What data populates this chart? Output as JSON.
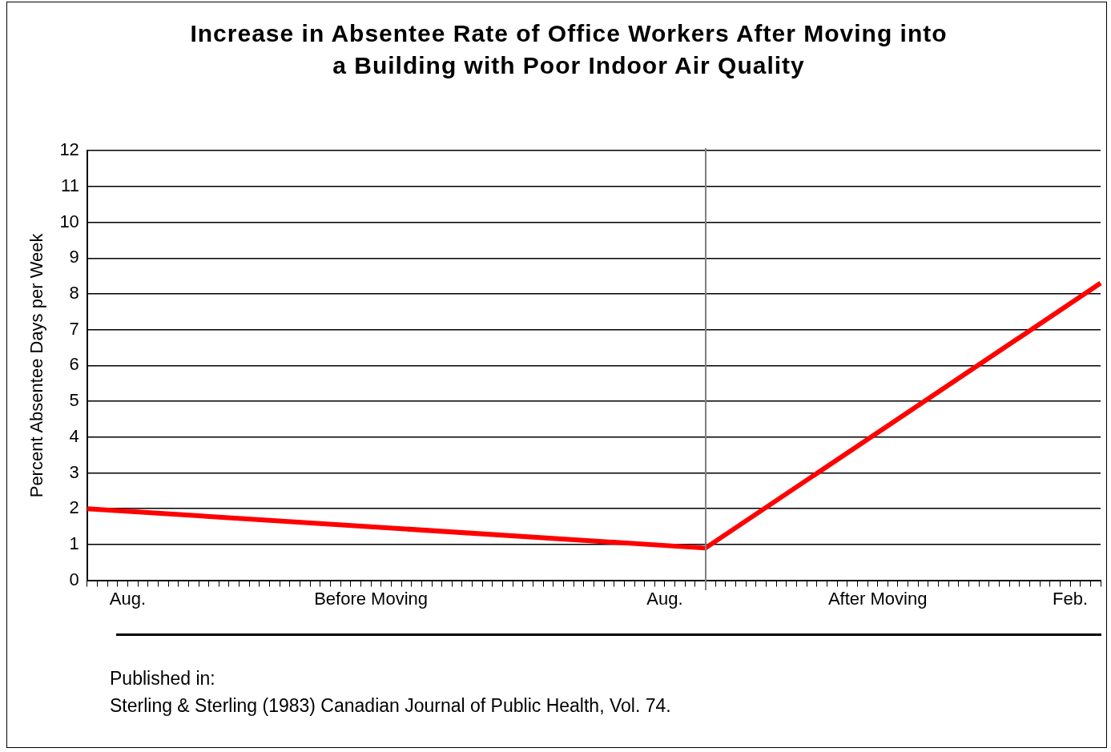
{
  "chart_data": {
    "type": "line",
    "title": "Increase in Absentee Rate of Office Workers After Moving into a Building with Poor Indoor Air Quality",
    "ylabel": "Percent Absentee Days per Week",
    "categories": [
      null,
      null,
      null,
      null,
      "Aug.",
      null,
      null,
      null,
      null,
      null,
      null,
      null,
      null,
      null,
      null,
      null,
      null,
      null,
      null,
      null,
      null,
      null,
      null,
      null,
      null,
      null,
      null,
      null,
      "Before Moving",
      null,
      null,
      null,
      null,
      null,
      null,
      null,
      null,
      null,
      null,
      null,
      null,
      null,
      null,
      null,
      null,
      null,
      null,
      null,
      null,
      null,
      null,
      null,
      null,
      null,
      null,
      null,
      null,
      "Aug.",
      null,
      null,
      null,
      null,
      null,
      null,
      null,
      null,
      null,
      null,
      null,
      null,
      null,
      null,
      null,
      null,
      null,
      null,
      null,
      null,
      "After Moving",
      null,
      null,
      null,
      null,
      null,
      null,
      null,
      null,
      null,
      null,
      null,
      null,
      null,
      null,
      null,
      null,
      null,
      null,
      "Feb.",
      null,
      null,
      null
    ],
    "series": [
      {
        "color": "#ff0000",
        "values": [
          2.0,
          null,
          null,
          null,
          null,
          null,
          null,
          null,
          null,
          null,
          null,
          null,
          null,
          null,
          null,
          null,
          null,
          null,
          null,
          null,
          null,
          null,
          null,
          null,
          null,
          null,
          null,
          null,
          null,
          null,
          null,
          null,
          null,
          null,
          null,
          null,
          null,
          null,
          null,
          null,
          null,
          null,
          null,
          null,
          null,
          null,
          null,
          null,
          null,
          null,
          null,
          null,
          null,
          null,
          null,
          null,
          null,
          null,
          null,
          null,
          null,
          0.9,
          null,
          null,
          null,
          null,
          null,
          null,
          null,
          null,
          null,
          null,
          null,
          null,
          null,
          null,
          null,
          null,
          null,
          null,
          null,
          null,
          null,
          null,
          null,
          null,
          null,
          null,
          null,
          null,
          null,
          null,
          null,
          null,
          null,
          null,
          null,
          null,
          null,
          null,
          8.3
        ]
      }
    ],
    "ylim": [
      0,
      12
    ],
    "yticks": [
      0,
      1,
      2,
      3,
      4,
      5,
      6,
      7,
      8,
      9,
      10,
      11,
      12
    ],
    "grid": "y",
    "legend": false,
    "marker": "none",
    "line_style": "solid",
    "annotations": [
      "Published in:",
      "Sterling & Sterling (1983) Canadian Journal of Public Health, Vol. 74."
    ]
  }
}
